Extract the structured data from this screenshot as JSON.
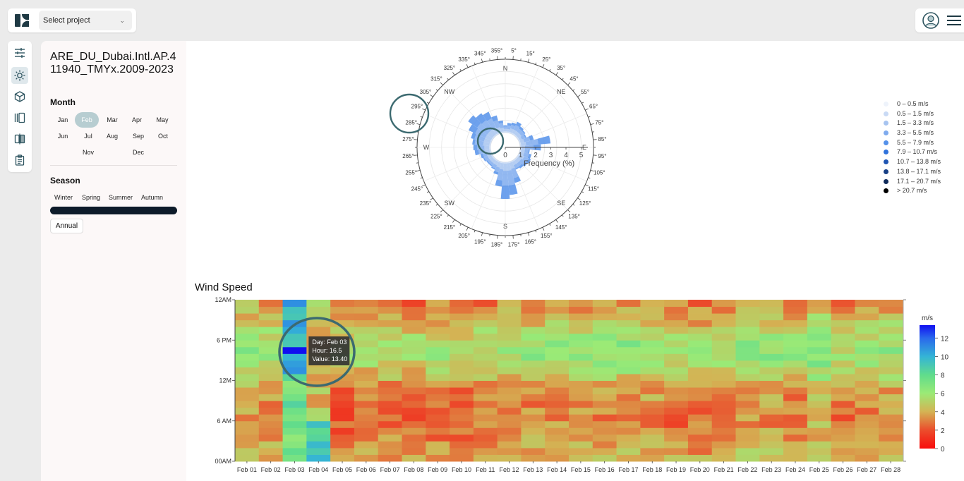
{
  "header": {
    "project_select": {
      "placeholder": "Select project"
    },
    "icons": {
      "logo": "logo-icon",
      "avatar": "user-avatar-icon",
      "menu": "hamburger-menu-icon"
    }
  },
  "toolbar": {
    "items": [
      {
        "icon": "sliders-icon",
        "active": false
      },
      {
        "icon": "sun-icon",
        "active": true
      },
      {
        "icon": "cube-icon",
        "active": false
      },
      {
        "icon": "panels-icon",
        "active": false
      },
      {
        "icon": "compare-icon",
        "active": false
      },
      {
        "icon": "clipboard-icon",
        "active": false
      }
    ]
  },
  "sidebar": {
    "station_name": "ARE_DU_Dubai.Intl.AP.411940_TMYx.2009-2023",
    "month_title": "Month",
    "months": [
      "Jan",
      "Feb",
      "Mar",
      "Apr",
      "May",
      "Jun",
      "Jul",
      "Aug",
      "Sep",
      "Oct",
      "Nov",
      "Dec"
    ],
    "selected_month": "Feb",
    "season_title": "Season",
    "seasons": [
      "Winter",
      "Spring",
      "Summer",
      "Autumn"
    ],
    "annual_label": "Annual"
  },
  "chart_data": [
    {
      "type": "windrose",
      "title": "",
      "radial_axis_label": "Frequency (%)",
      "radial_ticks": [
        "0",
        "1",
        "2",
        "3",
        "4",
        "5"
      ],
      "compass_labels": [
        "N",
        "NE",
        "E",
        "SE",
        "S",
        "SW",
        "W",
        "NW"
      ],
      "degree_labels": [
        "5°",
        "15°",
        "25°",
        "35°",
        "45°",
        "55°",
        "65°",
        "75°",
        "85°",
        "95°",
        "105°",
        "115°",
        "125°",
        "135°",
        "145°",
        "155°",
        "165°",
        "175°",
        "185°",
        "195°",
        "205°",
        "215°",
        "225°",
        "235°",
        "245°",
        "255°",
        "265°",
        "275°",
        "285°",
        "295°",
        "305°",
        "315°",
        "325°",
        "335°",
        "345°",
        "355°"
      ],
      "speed_bins": [
        "0 – 0.5 m/s",
        "0.5 – 1.5 m/s",
        "1.5 – 3.3 m/s",
        "3.3 – 5.5 m/s",
        "5.5 – 7.9 m/s",
        "7.9 – 10.7 m/s",
        "10.7 – 13.8 m/s",
        "13.8 – 17.1 m/s",
        "17.1 – 20.7 m/s",
        "> 20.7 m/s"
      ],
      "speed_bin_colors": [
        "#eef3fb",
        "#c9daf5",
        "#a7c4f0",
        "#7fabee",
        "#5491ea",
        "#2f72dc",
        "#1f55b3",
        "#183f86",
        "#0f2a5a",
        "#000000"
      ],
      "directions_deg": [
        0,
        10,
        20,
        30,
        40,
        50,
        60,
        70,
        80,
        90,
        100,
        110,
        120,
        130,
        140,
        150,
        160,
        170,
        180,
        190,
        200,
        210,
        220,
        230,
        240,
        250,
        260,
        270,
        280,
        290,
        300,
        310,
        320,
        330,
        340,
        350
      ],
      "frequency_pct": [
        [
          0.1,
          0.2,
          0.2,
          0.1
        ],
        [
          0.1,
          0.2,
          0.3,
          0.2
        ],
        [
          0.1,
          0.3,
          0.3,
          0.2
        ],
        [
          0.1,
          0.3,
          0.4,
          0.3
        ],
        [
          0.1,
          0.3,
          0.3,
          0.2
        ],
        [
          0.1,
          0.3,
          0.3,
          0.1
        ],
        [
          0.1,
          0.2,
          0.3,
          0.1
        ],
        [
          0.1,
          0.3,
          0.5,
          0.3
        ],
        [
          0.1,
          0.4,
          1.0,
          1.0
        ],
        [
          0.1,
          0.3,
          0.7,
          0.6
        ],
        [
          0.1,
          0.3,
          0.3,
          0.1
        ],
        [
          0.1,
          0.3,
          0.4,
          0.2
        ],
        [
          0.1,
          0.4,
          0.4,
          0.2
        ],
        [
          0.1,
          0.3,
          0.4,
          0.2
        ],
        [
          0.1,
          0.3,
          0.3,
          0.2
        ],
        [
          0.1,
          0.3,
          0.3,
          0.1
        ],
        [
          0.1,
          0.5,
          0.8,
          0.4
        ],
        [
          0.1,
          0.6,
          1.2,
          0.8
        ],
        [
          0.1,
          0.6,
          1.2,
          1.1
        ],
        [
          0.1,
          0.5,
          0.9,
          0.5
        ],
        [
          0.1,
          0.4,
          0.4,
          0.2
        ],
        [
          0.1,
          0.3,
          0.3,
          0.1
        ],
        [
          0.1,
          0.3,
          0.2,
          0.1
        ],
        [
          0.1,
          0.3,
          0.2,
          0.1
        ],
        [
          0.1,
          0.3,
          0.3,
          0.1
        ],
        [
          0.1,
          0.3,
          0.3,
          0.2
        ],
        [
          0.1,
          0.4,
          0.5,
          0.3
        ],
        [
          0.1,
          0.4,
          0.6,
          0.3
        ],
        [
          0.1,
          0.5,
          0.7,
          0.2
        ],
        [
          0.1,
          0.5,
          0.8,
          0.3
        ],
        [
          0.1,
          0.5,
          0.9,
          0.6
        ],
        [
          0.1,
          0.5,
          1.0,
          0.9
        ],
        [
          0.1,
          0.5,
          0.9,
          0.7
        ],
        [
          0.1,
          0.5,
          0.8,
          0.6
        ],
        [
          0.1,
          0.4,
          0.6,
          0.4
        ],
        [
          0.1,
          0.3,
          0.4,
          0.2
        ]
      ]
    },
    {
      "type": "heatmap",
      "title": "Wind Speed",
      "x_categories": [
        "Feb 01",
        "Feb 02",
        "Feb 03",
        "Feb 04",
        "Feb 05",
        "Feb 06",
        "Feb 07",
        "Feb 08",
        "Feb 09",
        "Feb 10",
        "Feb 11",
        "Feb 12",
        "Feb 13",
        "Feb 14",
        "Feb 15",
        "Feb 16",
        "Feb 17",
        "Feb 18",
        "Feb 19",
        "Feb 20",
        "Feb 21",
        "Feb 22",
        "Feb 23",
        "Feb 24",
        "Feb 25",
        "Feb 26",
        "Feb 27",
        "Feb 28"
      ],
      "y_tick_labels": [
        "00AM",
        "6 AM",
        "12M",
        "6 PM",
        "12AM"
      ],
      "y_range_hours": [
        0,
        24
      ],
      "colorbar_title": "m/s",
      "colorbar_ticks": [
        0,
        2,
        4,
        6,
        8,
        10,
        12
      ],
      "z_range": [
        0,
        13.4
      ],
      "tooltip": {
        "day": "Day: Feb 03",
        "hour": "Hour: 16.5",
        "value": "Value: 13.40"
      },
      "highlight_cell": {
        "day_index": 2,
        "hour": 16.5,
        "value": 13.4
      },
      "hours_per_day": 24,
      "generator_base_per_day": [
        3.6,
        3.0,
        7.8,
        6.0,
        2.2,
        2.3,
        2.6,
        2.4,
        2.6,
        2.2,
        2.7,
        3.1,
        3.1,
        3.2,
        3.3,
        3.2,
        3.3,
        3.3,
        2.6,
        2.5,
        3.0,
        3.3,
        3.3,
        3.0,
        4.0,
        2.6,
        3.0,
        3.3
      ]
    }
  ]
}
